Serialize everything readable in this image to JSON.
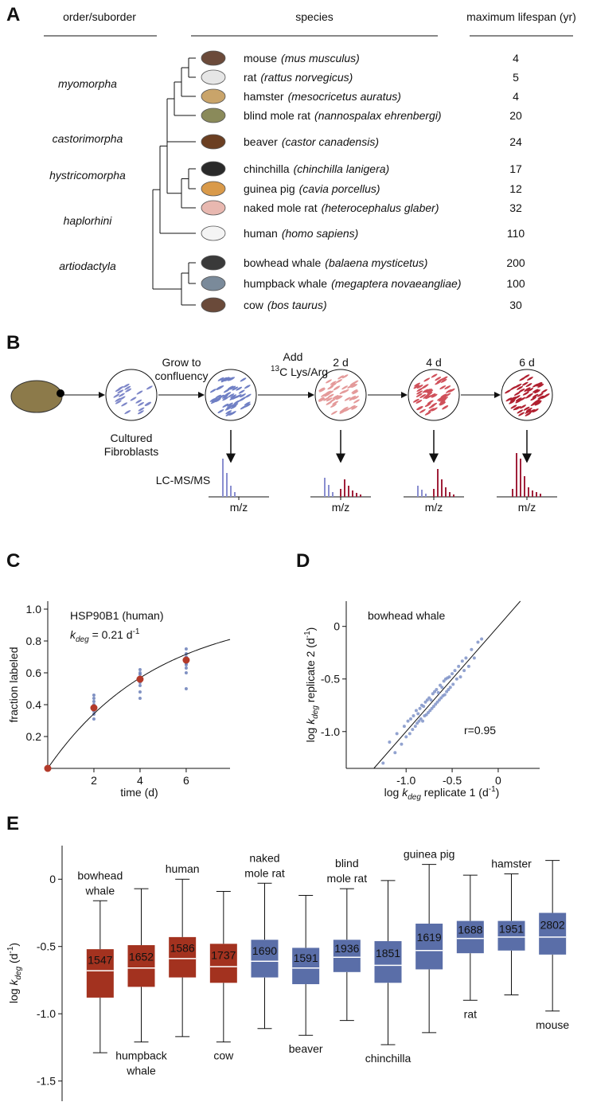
{
  "panel_a": {
    "label": "A",
    "headers": [
      "order/suborder",
      "species",
      "maximum lifespan (yr)"
    ],
    "orders": [
      {
        "name": "myomorpha",
        "color": "#a3262a",
        "species": [
          {
            "common": "mouse",
            "latin": "(mus musculus)",
            "lifespan": 4
          },
          {
            "common": "rat",
            "latin": "(rattus norvegicus)",
            "lifespan": 5
          },
          {
            "common": "hamster",
            "latin": "(mesocricetus auratus)",
            "lifespan": 4
          },
          {
            "common": "blind mole rat",
            "latin": "(nannospalax ehrenbergi)",
            "lifespan": 20
          }
        ]
      },
      {
        "name": "castorimorpha",
        "color": "#2e6b2f",
        "species": [
          {
            "common": "beaver",
            "latin": "(castor canadensis)",
            "lifespan": 24
          }
        ]
      },
      {
        "name": "hystricomorpha",
        "color": "#262f8a",
        "species": [
          {
            "common": "chinchilla",
            "latin": "(chinchilla lanigera)",
            "lifespan": 17
          },
          {
            "common": "guinea pig",
            "latin": "(cavia porcellus)",
            "lifespan": 12
          },
          {
            "common": "naked mole rat",
            "latin": "(heterocephalus glaber)",
            "lifespan": 32
          }
        ]
      },
      {
        "name": "haplorhini",
        "color": "#2a1010",
        "species": [
          {
            "common": "human",
            "latin": "(homo sapiens)",
            "lifespan": 110
          }
        ]
      },
      {
        "name": "artiodactyla",
        "color": "#b9791c",
        "species": [
          {
            "common": "bowhead whale",
            "latin": "(balaena mysticetus)",
            "lifespan": 200
          },
          {
            "common": "humpback whale",
            "latin": "(megaptera novaeangliae)",
            "lifespan": 100
          },
          {
            "common": "cow",
            "latin": "(bos taurus)",
            "lifespan": 30
          }
        ]
      }
    ]
  },
  "panel_b": {
    "label": "B",
    "grow": [
      "Grow to",
      "confluency"
    ],
    "cultured": [
      "Cultured",
      "Fibroblasts"
    ],
    "add": "Add",
    "isotope_mass": "13",
    "isotope_rest": "C Lys/Arg",
    "timepoints": [
      "2 d",
      "4 d",
      "6 d"
    ],
    "method": "LC-MS/MS",
    "spectrum_axis": "m/z"
  },
  "chart_data": [
    {
      "type": "scatter",
      "label": "C",
      "title": "HSP90B1 (human)",
      "annotation_runs": [
        {
          "text": "k",
          "italic": true
        },
        {
          "text": "deg",
          "italic": true,
          "sub": true
        },
        {
          "text": " = "
        },
        {
          "value": 0.21
        },
        {
          "text": " d"
        },
        {
          "text": "-1",
          "sup": true
        }
      ],
      "xlabel": "time (d)",
      "ylabel": "fraction labeled",
      "color": "#6b7fb8",
      "x": [
        2,
        2,
        2,
        2,
        2,
        2,
        2,
        2,
        2,
        2,
        4,
        4,
        4,
        4,
        4,
        4,
        4,
        4,
        4,
        4,
        6,
        6,
        6,
        6,
        6,
        6,
        6,
        6,
        6,
        6
      ],
      "values": [
        0.31,
        0.34,
        0.36,
        0.37,
        0.38,
        0.39,
        0.4,
        0.42,
        0.44,
        0.46,
        0.44,
        0.48,
        0.52,
        0.54,
        0.55,
        0.56,
        0.57,
        0.59,
        0.6,
        0.62,
        0.5,
        0.6,
        0.63,
        0.65,
        0.66,
        0.67,
        0.68,
        0.7,
        0.72,
        0.75
      ],
      "means": {
        "x": [
          0,
          2,
          4,
          6
        ],
        "values": [
          0,
          0.38,
          0.56,
          0.68
        ],
        "color": "#b33a2a"
      },
      "xlim": [
        0,
        7.9
      ],
      "ylim": [
        0,
        1.05
      ],
      "xticks": [
        2,
        4,
        6
      ],
      "yticks": [
        0.2,
        0.4,
        0.6,
        0.8,
        {
          "value": 1,
          "label": "1.0"
        }
      ]
    },
    {
      "type": "scatter",
      "label": "D",
      "title": "bowhead whale",
      "annotation": "r=0.95",
      "identity_line": true,
      "color": "#7f93c8",
      "xlabel_runs": [
        {
          "text": "log "
        },
        {
          "text": "k",
          "italic": true
        },
        {
          "text": "deg",
          "italic": true,
          "sub": true
        },
        {
          "text": " replicate 1 (d"
        },
        {
          "text": "-1",
          "sup": true
        },
        {
          "text": ")"
        }
      ],
      "ylabel_runs": [
        {
          "text": "log "
        },
        {
          "text": "k",
          "italic": true
        },
        {
          "text": "deg",
          "italic": true,
          "sub": true
        },
        {
          "text": " replicate 2 (d"
        },
        {
          "text": "-1",
          "sup": true
        },
        {
          "text": ")"
        }
      ],
      "x": [
        -1.25,
        -1.18,
        -1.12,
        -1.1,
        -1.05,
        -1.02,
        -1.0,
        -0.98,
        -0.96,
        -0.95,
        -0.93,
        -0.92,
        -0.9,
        -0.89,
        -0.88,
        -0.87,
        -0.86,
        -0.85,
        -0.84,
        -0.83,
        -0.82,
        -0.81,
        -0.8,
        -0.79,
        -0.78,
        -0.77,
        -0.76,
        -0.75,
        -0.74,
        -0.73,
        -0.72,
        -0.71,
        -0.7,
        -0.69,
        -0.68,
        -0.67,
        -0.66,
        -0.65,
        -0.64,
        -0.63,
        -0.62,
        -0.61,
        -0.6,
        -0.59,
        -0.58,
        -0.57,
        -0.56,
        -0.55,
        -0.54,
        -0.53,
        -0.52,
        -0.5,
        -0.49,
        -0.47,
        -0.45,
        -0.43,
        -0.41,
        -0.39,
        -0.37,
        -0.35,
        -0.32,
        -0.29,
        -0.26,
        -0.22,
        -0.18
      ],
      "values": [
        -1.3,
        -1.1,
        -1.2,
        -1.02,
        -1.12,
        -0.95,
        -1.05,
        -0.9,
        -1.02,
        -0.88,
        -0.98,
        -0.85,
        -0.95,
        -0.8,
        -0.92,
        -0.83,
        -0.9,
        -0.78,
        -0.88,
        -0.75,
        -0.9,
        -0.76,
        -0.85,
        -0.72,
        -0.84,
        -0.7,
        -0.82,
        -0.68,
        -0.8,
        -0.7,
        -0.78,
        -0.64,
        -0.76,
        -0.62,
        -0.74,
        -0.6,
        -0.72,
        -0.63,
        -0.7,
        -0.56,
        -0.68,
        -0.58,
        -0.66,
        -0.52,
        -0.65,
        -0.5,
        -0.62,
        -0.49,
        -0.6,
        -0.48,
        -0.58,
        -0.45,
        -0.55,
        -0.42,
        -0.5,
        -0.38,
        -0.48,
        -0.33,
        -0.42,
        -0.3,
        -0.38,
        -0.22,
        -0.3,
        -0.15,
        -0.12
      ],
      "xlim": [
        -1.65,
        0.45
      ],
      "ylim": [
        -1.35,
        0.24
      ],
      "xticks": [
        {
          "value": -1,
          "label": "-1.0"
        },
        -0.5,
        0
      ],
      "yticks": [
        {
          "value": -1,
          "label": "-1.0"
        },
        -0.5,
        0
      ]
    },
    {
      "type": "box",
      "label": "E",
      "ylabel_runs": [
        {
          "text": "log "
        },
        {
          "text": "k",
          "italic": true
        },
        {
          "text": "deg",
          "italic": true,
          "sub": true
        },
        {
          "text": " (d"
        },
        {
          "text": "-1",
          "sup": true
        },
        {
          "text": ")"
        }
      ],
      "ylim": [
        -1.65,
        0.25
      ],
      "yticks": [
        0,
        -0.5,
        {
          "value": -1,
          "label": "-1.0"
        },
        -1.5
      ],
      "categories": [
        [
          "bowhead",
          "whale"
        ],
        [
          "humpback",
          "whale"
        ],
        [
          "human"
        ],
        [
          "cow"
        ],
        [
          "naked",
          "mole rat"
        ],
        [
          "beaver"
        ],
        [
          "blind",
          "mole rat"
        ],
        [
          "chinchilla"
        ],
        [
          "guinea pig"
        ],
        [
          "rat"
        ],
        [
          "hamster"
        ],
        [
          "mouse"
        ]
      ],
      "boxes": [
        {
          "whisker_low": -1.29,
          "q1": -0.88,
          "median": -0.68,
          "q3": -0.52,
          "whisker_high": -0.16,
          "n": 1547,
          "color": "#a3321f"
        },
        {
          "whisker_low": -1.21,
          "q1": -0.8,
          "median": -0.66,
          "q3": -0.49,
          "whisker_high": -0.07,
          "n": 1652,
          "color": "#a3321f"
        },
        {
          "whisker_low": -1.17,
          "q1": -0.73,
          "median": -0.59,
          "q3": -0.43,
          "whisker_high": 0,
          "n": 1586,
          "color": "#a3321f"
        },
        {
          "whisker_low": -1.21,
          "q1": -0.77,
          "median": -0.65,
          "q3": -0.48,
          "whisker_high": -0.09,
          "n": 1737,
          "color": "#a3321f"
        },
        {
          "whisker_low": -1.11,
          "q1": -0.73,
          "median": -0.61,
          "q3": -0.45,
          "whisker_high": -0.03,
          "n": 1690,
          "color": "#5a6ea8"
        },
        {
          "whisker_low": -1.16,
          "q1": -0.78,
          "median": -0.66,
          "q3": -0.51,
          "whisker_high": -0.12,
          "n": 1591,
          "color": "#5a6ea8"
        },
        {
          "whisker_low": -1.05,
          "q1": -0.69,
          "median": -0.58,
          "q3": -0.45,
          "whisker_high": -0.07,
          "n": 1936,
          "color": "#5a6ea8"
        },
        {
          "whisker_low": -1.23,
          "q1": -0.77,
          "median": -0.64,
          "q3": -0.46,
          "whisker_high": -0.01,
          "n": 1851,
          "color": "#5a6ea8"
        },
        {
          "whisker_low": -1.14,
          "q1": -0.67,
          "median": -0.53,
          "q3": -0.33,
          "whisker_high": 0.11,
          "n": 1619,
          "color": "#5a6ea8"
        },
        {
          "whisker_low": -0.9,
          "q1": -0.55,
          "median": -0.44,
          "q3": -0.31,
          "whisker_high": 0.03,
          "n": 1688,
          "color": "#5a6ea8"
        },
        {
          "whisker_low": -0.86,
          "q1": -0.53,
          "median": -0.43,
          "q3": -0.31,
          "whisker_high": 0.04,
          "n": 1951,
          "color": "#5a6ea8"
        },
        {
          "whisker_low": -0.98,
          "q1": -0.56,
          "median": -0.43,
          "q3": -0.25,
          "whisker_high": 0.14,
          "n": 2802,
          "color": "#5a6ea8"
        }
      ]
    }
  ]
}
